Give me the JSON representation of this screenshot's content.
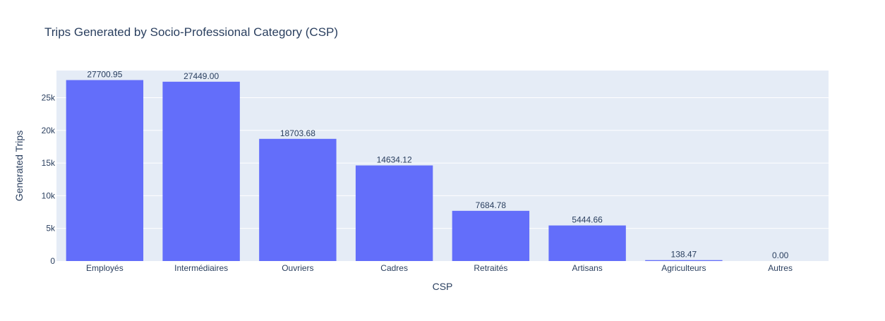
{
  "chart_data": {
    "type": "bar",
    "title": "Trips Generated by Socio-Professional Category (CSP)",
    "xlabel": "CSP",
    "ylabel": "Generated Trips",
    "categories": [
      "Employés",
      "Intermédiaires",
      "Ouvriers",
      "Cadres",
      "Retraités",
      "Artisans",
      "Agriculteurs",
      "Autres"
    ],
    "values": [
      27700.95,
      27449.0,
      18703.68,
      14634.12,
      7684.78,
      5444.66,
      138.47,
      0.0
    ],
    "value_labels": [
      "27700.95",
      "27449.00",
      "18703.68",
      "14634.12",
      "7684.78",
      "5444.66",
      "138.47",
      "0.00"
    ],
    "yticks": [
      0,
      5000,
      10000,
      15000,
      20000,
      25000
    ],
    "ytick_labels": [
      "0",
      "5k",
      "10k",
      "15k",
      "20k",
      "25k"
    ],
    "ylim": [
      0,
      29158.9
    ],
    "grid": true,
    "colors": {
      "bar": "#636efa",
      "plot_bg": "#e5ecf6",
      "grid": "#ffffff",
      "text": "#2a3f5f",
      "paper_bg": "#ffffff"
    }
  }
}
